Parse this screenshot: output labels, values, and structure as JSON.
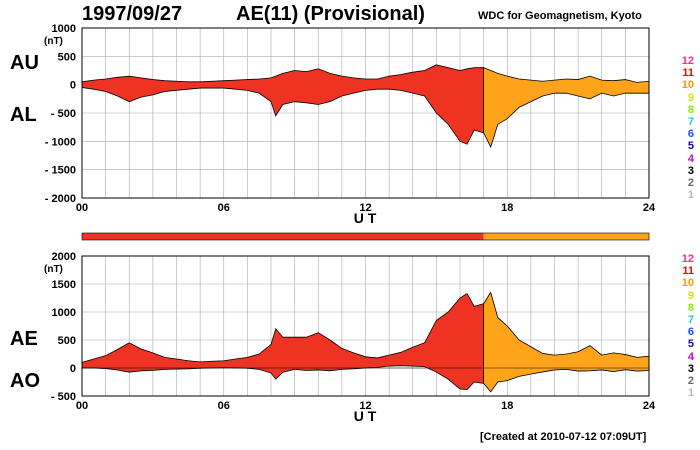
{
  "header": {
    "date": "1997/09/27",
    "title": "AE(11) (Provisional)",
    "org": "WDC for Geomagnetism, Kyoto"
  },
  "footer": {
    "created": "[Created at 2010-07-12 07:09UT]"
  },
  "colors": {
    "final_segment": "#ee3322",
    "provisional_segment": "#ffa31a",
    "grid": "#aaaaaa"
  },
  "station_count_legend": [
    {
      "label": "12",
      "color": "#ff2a8a"
    },
    {
      "label": "11",
      "color": "#dd1100"
    },
    {
      "label": "10",
      "color": "#ff9900"
    },
    {
      "label": "9",
      "color": "#dddd00"
    },
    {
      "label": "8",
      "color": "#88ee00"
    },
    {
      "label": "7",
      "color": "#22cccc"
    },
    {
      "label": "6",
      "color": "#1155ff"
    },
    {
      "label": "5",
      "color": "#2200aa"
    },
    {
      "label": "4",
      "color": "#cc00cc"
    },
    {
      "label": "3",
      "color": "#000000"
    },
    {
      "label": "2",
      "color": "#666666"
    },
    {
      "label": "1",
      "color": "#bbbbbb"
    }
  ],
  "chart_data": [
    {
      "type": "area",
      "panel": "AU/AL",
      "side_labels": [
        "AU",
        "AL"
      ],
      "xlabel": "U T",
      "ylabel_unit": "(nT)",
      "xlim": [
        0,
        24
      ],
      "ylim": [
        -2000,
        1000
      ],
      "x_ticks": [
        "00",
        "06",
        "12",
        "18",
        "24"
      ],
      "y_ticks": [
        "1000",
        "500",
        "0",
        "- 500",
        "- 1000",
        "- 1500",
        "- 2000"
      ],
      "grid": true,
      "color_change_hour": 17,
      "hours": [
        0,
        0.5,
        1,
        1.5,
        2,
        2.5,
        3,
        3.5,
        4,
        4.5,
        5,
        5.5,
        6,
        6.5,
        7,
        7.5,
        8,
        8.2,
        8.5,
        9,
        9.5,
        10,
        10.5,
        11,
        11.5,
        12,
        12.5,
        13,
        13.5,
        14,
        14.5,
        15,
        15.5,
        16,
        16.3,
        16.6,
        17,
        17.3,
        17.6,
        18,
        18.5,
        19,
        19.5,
        20,
        20.5,
        21,
        21.5,
        22,
        22.5,
        23,
        23.5,
        24
      ],
      "series": [
        {
          "name": "AU",
          "values": [
            50,
            80,
            100,
            130,
            150,
            120,
            90,
            70,
            60,
            50,
            50,
            60,
            70,
            80,
            90,
            100,
            120,
            150,
            200,
            250,
            230,
            280,
            200,
            150,
            120,
            100,
            100,
            150,
            180,
            220,
            250,
            350,
            300,
            250,
            280,
            300,
            300,
            250,
            200,
            150,
            100,
            80,
            60,
            80,
            100,
            90,
            150,
            80,
            70,
            90,
            40,
            60
          ]
        },
        {
          "name": "AL",
          "values": [
            -50,
            -80,
            -120,
            -200,
            -300,
            -220,
            -180,
            -120,
            -100,
            -80,
            -60,
            -60,
            -60,
            -80,
            -100,
            -150,
            -300,
            -550,
            -350,
            -300,
            -320,
            -350,
            -300,
            -200,
            -150,
            -100,
            -80,
            -80,
            -100,
            -150,
            -200,
            -500,
            -700,
            -1000,
            -1050,
            -800,
            -850,
            -1100,
            -700,
            -600,
            -400,
            -300,
            -200,
            -150,
            -150,
            -200,
            -250,
            -150,
            -200,
            -150,
            -150,
            -150
          ]
        }
      ]
    },
    {
      "type": "area",
      "panel": "AE/AO",
      "side_labels": [
        "AE",
        "AO"
      ],
      "xlabel": "U T",
      "ylabel_unit": "(nT)",
      "xlim": [
        0,
        24
      ],
      "ylim": [
        -500,
        2000
      ],
      "x_ticks": [
        "00",
        "06",
        "12",
        "18",
        "24"
      ],
      "y_ticks": [
        "2000",
        "1500",
        "1000",
        "500",
        "0",
        "- 500"
      ],
      "grid": true,
      "color_change_hour": 17,
      "hours": [
        0,
        0.5,
        1,
        1.5,
        2,
        2.5,
        3,
        3.5,
        4,
        4.5,
        5,
        5.5,
        6,
        6.5,
        7,
        7.5,
        8,
        8.2,
        8.5,
        9,
        9.5,
        10,
        10.5,
        11,
        11.5,
        12,
        12.5,
        13,
        13.5,
        14,
        14.5,
        15,
        15.5,
        16,
        16.3,
        16.6,
        17,
        17.3,
        17.6,
        18,
        18.5,
        19,
        19.5,
        20,
        20.5,
        21,
        21.5,
        22,
        22.5,
        23,
        23.5,
        24
      ],
      "series": [
        {
          "name": "AE",
          "values": [
            100,
            160,
            220,
            330,
            450,
            340,
            270,
            190,
            160,
            130,
            110,
            120,
            130,
            160,
            190,
            250,
            420,
            700,
            550,
            550,
            550,
            630,
            500,
            350,
            270,
            200,
            180,
            230,
            280,
            370,
            450,
            850,
            1000,
            1250,
            1330,
            1100,
            1150,
            1350,
            900,
            750,
            500,
            380,
            260,
            230,
            250,
            290,
            400,
            230,
            270,
            240,
            190,
            210
          ]
        },
        {
          "name": "AO",
          "values": [
            0,
            0,
            -10,
            -35,
            -75,
            -50,
            -45,
            -25,
            -20,
            -15,
            -5,
            0,
            5,
            0,
            -5,
            -25,
            -90,
            -200,
            -75,
            -25,
            -45,
            -35,
            -50,
            -25,
            -15,
            0,
            10,
            35,
            40,
            35,
            25,
            -75,
            -200,
            -375,
            -385,
            -250,
            -275,
            -425,
            -250,
            -225,
            -150,
            -110,
            -70,
            -35,
            -25,
            -55,
            -50,
            -35,
            -65,
            -30,
            -55,
            -45
          ]
        }
      ]
    }
  ]
}
